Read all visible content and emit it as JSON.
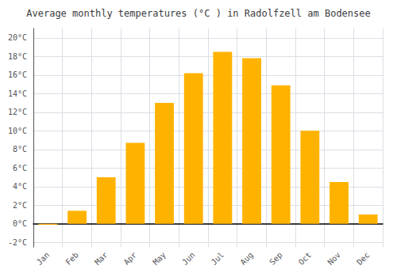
{
  "chart_data": {
    "type": "bar",
    "title": "Average monthly temperatures (°C ) in Radolfzell am Bodensee",
    "categories": [
      "Jan",
      "Feb",
      "Mar",
      "Apr",
      "May",
      "Jun",
      "Jul",
      "Aug",
      "Sep",
      "Oct",
      "Nov",
      "Dec"
    ],
    "values": [
      -0.1,
      1.4,
      5.0,
      8.7,
      13.0,
      16.2,
      18.5,
      17.8,
      14.9,
      10.0,
      4.5,
      1.0
    ],
    "color": "#FFB300",
    "ylim": [
      -2.5,
      21
    ],
    "yticks": [
      {
        "value": -2,
        "label": "-2°C"
      },
      {
        "value": 0,
        "label": "0°C"
      },
      {
        "value": 2,
        "label": "2°C"
      },
      {
        "value": 4,
        "label": "4°C"
      },
      {
        "value": 6,
        "label": "6°C"
      },
      {
        "value": 8,
        "label": "8°C"
      },
      {
        "value": 10,
        "label": "10°C"
      },
      {
        "value": 12,
        "label": "12°C"
      },
      {
        "value": 14,
        "label": "14°C"
      },
      {
        "value": 16,
        "label": "16°C"
      },
      {
        "value": 18,
        "label": "18°C"
      },
      {
        "value": 20,
        "label": "20°C"
      }
    ],
    "grid": true
  }
}
